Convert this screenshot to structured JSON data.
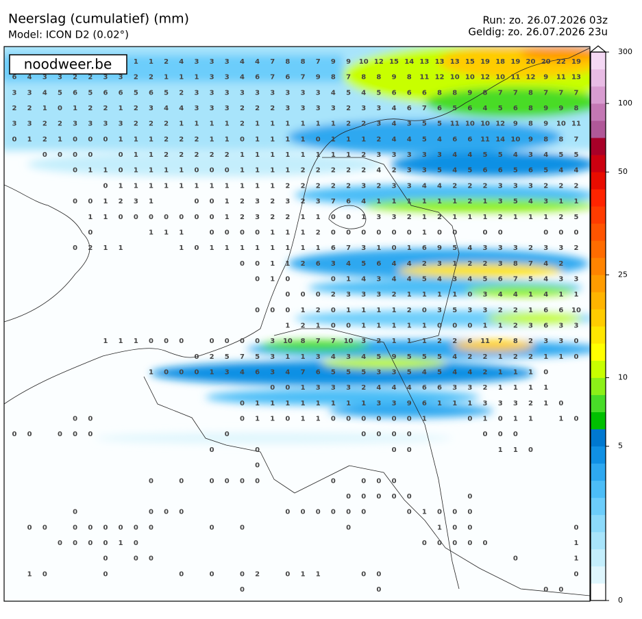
{
  "header": {
    "title": "Neerslag (cumulatief) (mm)",
    "model": "Model: ICON D2 (0.02°)",
    "run": "Run: zo. 26.07.2026 03z",
    "valid": "Geldig: zo. 26.07.2026 23u"
  },
  "watermark": "noodweer.be",
  "colorbar": {
    "ticks": [
      0,
      5,
      10,
      25,
      50,
      100,
      300
    ],
    "colors": [
      "#ffffff",
      "#dff6fd",
      "#c4eefc",
      "#a8e4fb",
      "#8cdafb",
      "#6ccdfb",
      "#4cbdf7",
      "#2ea8f0",
      "#1090e4",
      "#0078d0",
      "#00c000",
      "#48dc28",
      "#8cf018",
      "#c8ff00",
      "#ffff00",
      "#ffe600",
      "#ffcc00",
      "#ffb400",
      "#ff9c00",
      "#ff8400",
      "#ff6c00",
      "#ff5400",
      "#ff3c00",
      "#ff2400",
      "#e80c00",
      "#cc0010",
      "#a80028",
      "#b05898",
      "#c478b4",
      "#d89cd0",
      "#e8bce4",
      "#f4d8f4"
    ]
  },
  "grid": {
    "rows": [
      [
        null,
        null,
        null,
        null,
        null,
        null,
        null,
        null,
        1,
        1,
        2,
        4,
        3,
        3,
        3,
        4,
        4,
        7,
        8,
        8,
        7,
        9,
        9,
        10,
        12,
        15,
        14,
        13,
        13,
        13,
        15,
        19,
        18,
        19,
        20,
        20,
        22,
        19
      ],
      [
        6,
        4,
        3,
        3,
        2,
        2,
        3,
        3,
        2,
        2,
        1,
        1,
        1,
        3,
        3,
        4,
        6,
        7,
        6,
        7,
        9,
        8,
        7,
        8,
        8,
        9,
        8,
        11,
        12,
        10,
        10,
        12,
        10,
        11,
        12,
        9,
        11,
        13
      ],
      [
        3,
        3,
        4,
        5,
        6,
        5,
        6,
        6,
        5,
        6,
        5,
        2,
        3,
        3,
        3,
        3,
        3,
        3,
        3,
        3,
        3,
        4,
        5,
        4,
        5,
        6,
        6,
        6,
        8,
        8,
        9,
        8,
        7,
        7,
        8,
        7,
        7,
        7
      ],
      [
        2,
        2,
        1,
        0,
        1,
        2,
        2,
        1,
        2,
        3,
        4,
        4,
        3,
        3,
        3,
        2,
        2,
        2,
        3,
        3,
        3,
        3,
        2,
        3,
        3,
        4,
        6,
        7,
        6,
        5,
        6,
        4,
        5,
        6,
        8,
        9,
        9,
        8
      ],
      [
        3,
        3,
        2,
        2,
        3,
        3,
        3,
        3,
        2,
        2,
        2,
        1,
        1,
        1,
        1,
        2,
        1,
        1,
        1,
        1,
        1,
        1,
        2,
        2,
        3,
        4,
        3,
        5,
        5,
        11,
        10,
        10,
        12,
        9,
        8,
        9,
        10,
        11
      ],
      [
        0,
        1,
        2,
        1,
        0,
        0,
        0,
        1,
        1,
        1,
        2,
        2,
        2,
        1,
        1,
        0,
        1,
        1,
        1,
        1,
        0,
        1,
        1,
        1,
        2,
        4,
        4,
        5,
        4,
        6,
        6,
        11,
        14,
        10,
        9,
        8,
        8,
        7
      ],
      [
        null,
        null,
        0,
        0,
        0,
        0,
        null,
        0,
        1,
        1,
        2,
        2,
        2,
        2,
        2,
        1,
        1,
        1,
        1,
        1,
        1,
        1,
        1,
        2,
        3,
        3,
        3,
        3,
        3,
        4,
        4,
        5,
        5,
        4,
        3,
        4,
        5,
        5
      ],
      [
        null,
        null,
        null,
        null,
        0,
        1,
        1,
        0,
        1,
        1,
        1,
        1,
        0,
        0,
        0,
        1,
        1,
        1,
        1,
        2,
        2,
        2,
        2,
        2,
        4,
        2,
        3,
        3,
        5,
        4,
        5,
        6,
        6,
        5,
        6,
        5,
        4,
        4
      ],
      [
        null,
        null,
        null,
        null,
        null,
        null,
        0,
        1,
        1,
        1,
        1,
        1,
        1,
        1,
        1,
        1,
        1,
        1,
        2,
        2,
        2,
        2,
        2,
        3,
        2,
        3,
        3,
        4,
        4,
        2,
        2,
        2,
        3,
        3,
        3,
        2,
        2,
        2
      ],
      [
        null,
        null,
        null,
        null,
        0,
        0,
        1,
        2,
        3,
        1,
        null,
        null,
        0,
        0,
        1,
        2,
        3,
        2,
        3,
        2,
        3,
        7,
        6,
        4,
        1,
        1,
        1,
        1,
        1,
        1,
        2,
        1,
        3,
        5,
        4,
        3,
        1,
        1
      ],
      [
        null,
        null,
        null,
        null,
        null,
        1,
        1,
        0,
        0,
        0,
        0,
        0,
        0,
        0,
        1,
        2,
        3,
        2,
        2,
        1,
        1,
        0,
        0,
        1,
        3,
        3,
        2,
        1,
        2,
        1,
        1,
        1,
        2,
        1,
        1,
        1,
        2,
        5
      ],
      [
        null,
        null,
        null,
        null,
        null,
        0,
        null,
        null,
        null,
        1,
        1,
        1,
        null,
        0,
        0,
        0,
        0,
        1,
        1,
        1,
        2,
        0,
        0,
        0,
        0,
        0,
        0,
        1,
        0,
        0,
        null,
        0,
        0,
        null,
        null,
        0,
        0,
        0
      ],
      [
        null,
        null,
        null,
        null,
        0,
        2,
        1,
        1,
        null,
        null,
        null,
        1,
        0,
        1,
        1,
        1,
        1,
        1,
        1,
        1,
        1,
        6,
        7,
        3,
        1,
        0,
        1,
        6,
        9,
        5,
        4,
        3,
        3,
        3,
        2,
        3,
        3,
        2
      ],
      [
        null,
        null,
        null,
        null,
        null,
        null,
        null,
        null,
        null,
        null,
        null,
        null,
        null,
        null,
        null,
        0,
        0,
        1,
        1,
        2,
        6,
        3,
        4,
        5,
        6,
        4,
        4,
        2,
        3,
        1,
        2,
        2,
        3,
        8,
        7,
        4,
        2,
        null
      ],
      [
        null,
        null,
        null,
        null,
        null,
        null,
        null,
        null,
        null,
        null,
        null,
        null,
        null,
        null,
        null,
        null,
        0,
        1,
        0,
        null,
        null,
        0,
        1,
        4,
        3,
        4,
        4,
        5,
        4,
        3,
        4,
        5,
        6,
        7,
        5,
        4,
        3,
        3
      ],
      [
        null,
        null,
        null,
        null,
        null,
        null,
        null,
        null,
        null,
        null,
        null,
        null,
        null,
        null,
        null,
        null,
        null,
        null,
        0,
        0,
        0,
        2,
        3,
        3,
        3,
        2,
        1,
        1,
        1,
        1,
        0,
        3,
        4,
        4,
        1,
        4,
        1,
        1
      ],
      [
        null,
        null,
        null,
        null,
        null,
        null,
        null,
        null,
        null,
        null,
        null,
        null,
        null,
        null,
        null,
        null,
        0,
        0,
        0,
        1,
        2,
        0,
        1,
        1,
        1,
        1,
        2,
        0,
        3,
        5,
        3,
        3,
        2,
        2,
        1,
        6,
        6,
        10
      ],
      [
        null,
        null,
        null,
        null,
        null,
        null,
        null,
        null,
        null,
        null,
        null,
        null,
        null,
        null,
        null,
        null,
        null,
        null,
        1,
        2,
        1,
        0,
        0,
        1,
        1,
        1,
        1,
        1,
        0,
        0,
        0,
        1,
        1,
        2,
        3,
        6,
        3,
        3
      ],
      [
        null,
        null,
        null,
        null,
        null,
        null,
        1,
        1,
        1,
        0,
        0,
        0,
        null,
        0,
        0,
        0,
        0,
        3,
        10,
        8,
        7,
        7,
        10,
        3,
        2,
        1,
        1,
        1,
        2,
        2,
        6,
        11,
        7,
        8,
        2,
        3,
        3,
        0
      ],
      [
        null,
        null,
        null,
        null,
        null,
        null,
        null,
        null,
        null,
        null,
        null,
        null,
        0,
        2,
        5,
        7,
        5,
        3,
        1,
        1,
        3,
        4,
        3,
        4,
        5,
        9,
        5,
        5,
        5,
        4,
        2,
        2,
        1,
        2,
        2,
        1,
        1,
        0
      ],
      [
        null,
        null,
        null,
        null,
        null,
        null,
        null,
        null,
        null,
        1,
        0,
        0,
        0,
        1,
        3,
        4,
        6,
        3,
        4,
        7,
        6,
        5,
        5,
        5,
        3,
        3,
        5,
        4,
        5,
        4,
        4,
        2,
        1,
        1,
        1,
        0,
        null,
        null
      ],
      [
        null,
        null,
        null,
        null,
        null,
        null,
        null,
        null,
        null,
        null,
        null,
        null,
        null,
        null,
        null,
        null,
        null,
        0,
        0,
        1,
        3,
        3,
        3,
        2,
        4,
        4,
        4,
        6,
        6,
        3,
        3,
        2,
        1,
        1,
        1,
        1,
        null,
        null
      ],
      [
        null,
        null,
        null,
        null,
        null,
        null,
        null,
        null,
        null,
        null,
        null,
        null,
        null,
        null,
        null,
        0,
        1,
        1,
        1,
        1,
        1,
        1,
        1,
        1,
        3,
        3,
        9,
        6,
        1,
        1,
        1,
        3,
        3,
        3,
        2,
        1,
        0,
        null
      ],
      [
        null,
        null,
        null,
        null,
        0,
        0,
        null,
        null,
        null,
        null,
        null,
        null,
        null,
        null,
        null,
        0,
        1,
        1,
        0,
        1,
        1,
        0,
        0,
        0,
        0,
        0,
        0,
        1,
        null,
        null,
        0,
        1,
        0,
        1,
        1,
        null,
        1,
        0
      ],
      [
        0,
        0,
        null,
        0,
        0,
        0,
        null,
        null,
        null,
        null,
        null,
        null,
        null,
        null,
        0,
        null,
        null,
        null,
        null,
        null,
        null,
        null,
        null,
        0,
        0,
        0,
        0,
        null,
        null,
        null,
        null,
        0,
        0,
        0,
        null,
        null,
        null,
        null
      ],
      [
        null,
        null,
        null,
        null,
        null,
        null,
        null,
        null,
        null,
        null,
        null,
        null,
        null,
        0,
        null,
        null,
        0,
        null,
        null,
        null,
        null,
        null,
        null,
        null,
        null,
        0,
        0,
        null,
        null,
        null,
        null,
        null,
        1,
        1,
        0,
        null,
        null,
        null
      ],
      [
        null,
        null,
        null,
        null,
        null,
        null,
        null,
        null,
        null,
        null,
        null,
        null,
        null,
        null,
        null,
        null,
        0,
        null,
        null,
        null,
        null,
        null,
        null,
        null,
        null,
        null,
        null,
        null,
        null,
        null,
        null,
        null,
        null,
        null,
        null,
        null,
        null,
        null
      ],
      [
        null,
        null,
        null,
        null,
        null,
        null,
        null,
        null,
        null,
        0,
        null,
        0,
        null,
        0,
        0,
        0,
        0,
        null,
        null,
        null,
        null,
        0,
        null,
        0,
        0,
        0,
        null,
        null,
        null,
        null,
        null,
        null,
        null,
        null,
        null,
        null,
        null,
        null
      ],
      [
        null,
        null,
        null,
        null,
        null,
        null,
        null,
        null,
        null,
        null,
        null,
        null,
        null,
        null,
        null,
        null,
        null,
        null,
        null,
        null,
        null,
        null,
        0,
        0,
        0,
        0,
        0,
        null,
        null,
        null,
        0,
        null,
        null,
        null,
        null,
        null,
        null,
        null
      ],
      [
        null,
        null,
        null,
        null,
        0,
        null,
        null,
        null,
        null,
        0,
        0,
        0,
        null,
        null,
        null,
        null,
        null,
        null,
        0,
        0,
        0,
        0,
        0,
        0,
        null,
        null,
        0,
        1,
        0,
        0,
        0,
        null,
        null,
        null,
        null,
        null,
        null,
        null
      ],
      [
        null,
        0,
        0,
        null,
        0,
        0,
        0,
        0,
        0,
        0,
        null,
        null,
        null,
        0,
        null,
        0,
        null,
        null,
        null,
        null,
        null,
        null,
        0,
        null,
        null,
        null,
        null,
        null,
        1,
        0,
        0,
        null,
        null,
        null,
        null,
        null,
        null,
        0
      ],
      [
        null,
        null,
        null,
        0,
        0,
        0,
        0,
        1,
        0,
        null,
        null,
        null,
        null,
        null,
        null,
        null,
        null,
        null,
        null,
        null,
        null,
        null,
        null,
        null,
        null,
        null,
        null,
        0,
        0,
        0,
        0,
        0,
        null,
        null,
        null,
        null,
        null,
        1
      ],
      [
        null,
        null,
        null,
        null,
        null,
        null,
        0,
        null,
        0,
        0,
        null,
        null,
        null,
        null,
        null,
        null,
        null,
        null,
        null,
        null,
        null,
        null,
        null,
        null,
        null,
        null,
        null,
        null,
        null,
        null,
        null,
        null,
        null,
        0,
        null,
        null,
        null,
        1
      ],
      [
        null,
        1,
        0,
        null,
        null,
        null,
        0,
        null,
        null,
        null,
        null,
        0,
        null,
        0,
        null,
        0,
        2,
        null,
        0,
        1,
        1,
        null,
        null,
        0,
        0,
        null,
        null,
        null,
        null,
        null,
        null,
        null,
        null,
        null,
        null,
        null,
        null,
        0
      ],
      [
        null,
        null,
        null,
        null,
        null,
        null,
        null,
        null,
        null,
        null,
        null,
        null,
        null,
        null,
        null,
        0,
        null,
        null,
        null,
        null,
        null,
        null,
        null,
        null,
        0,
        null,
        null,
        null,
        null,
        null,
        null,
        null,
        null,
        null,
        null,
        0,
        0,
        null
      ]
    ]
  }
}
